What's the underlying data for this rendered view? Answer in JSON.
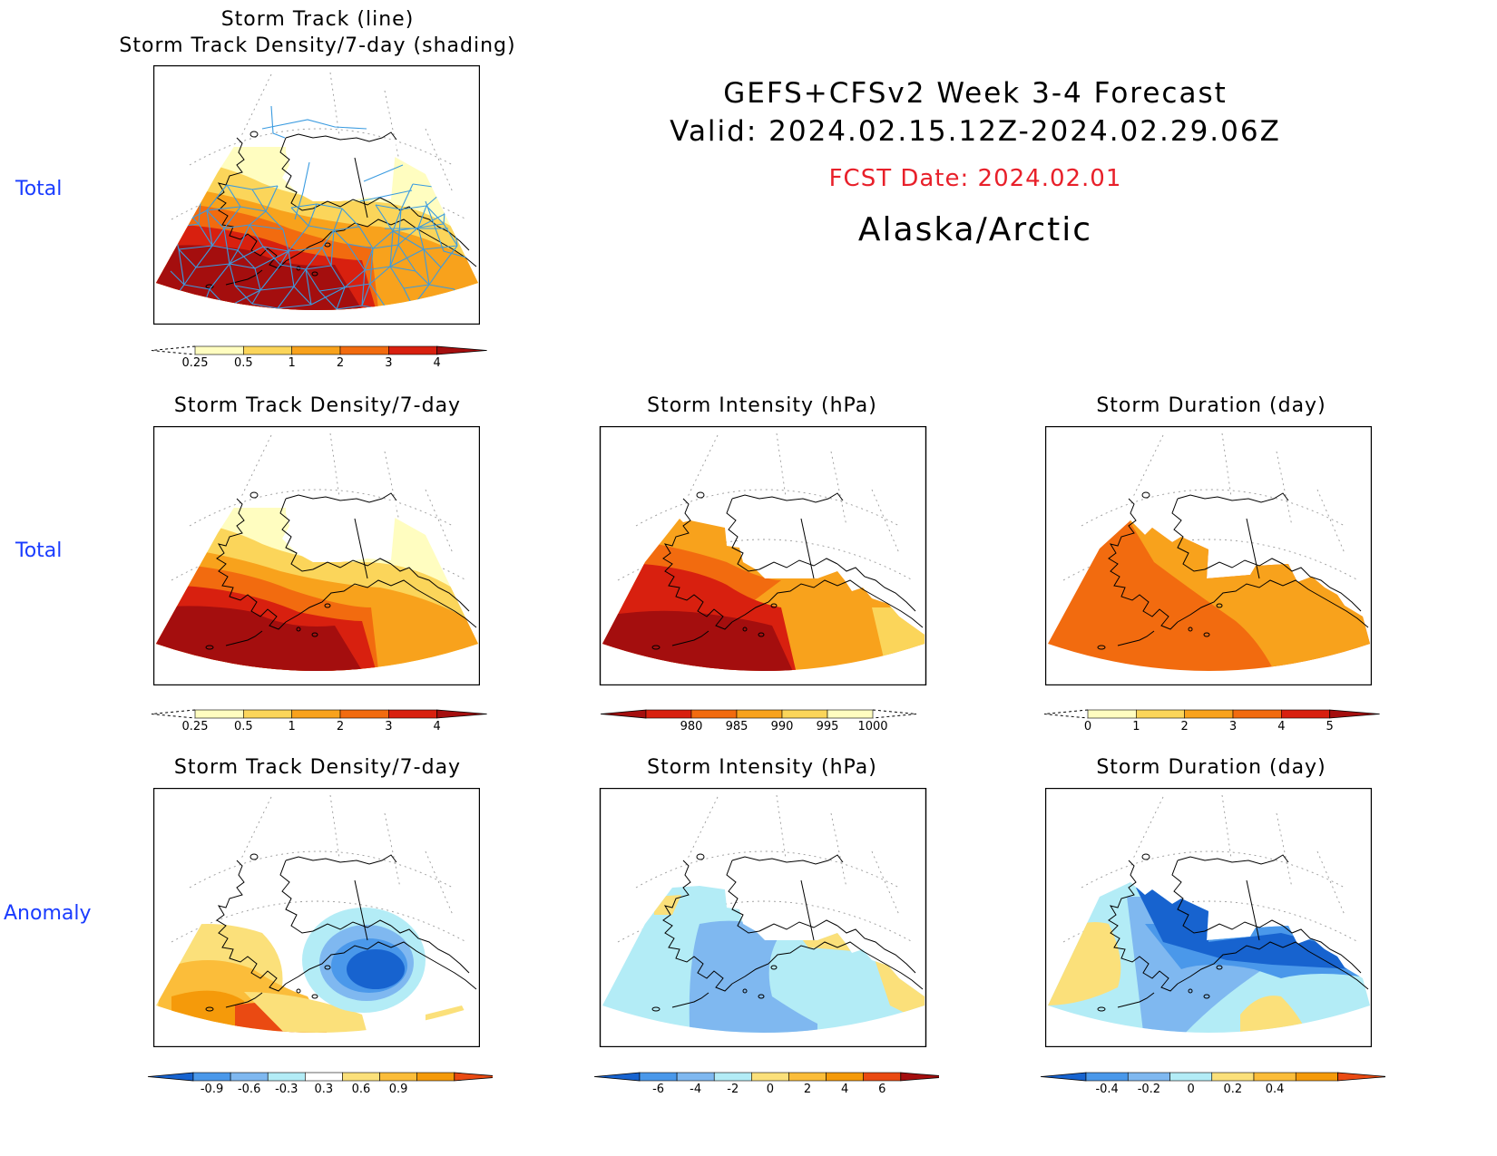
{
  "header": {
    "title_line1": "GEFS+CFSv2 Week 3-4 Forecast",
    "title_line2": "Valid: 2024.02.15.12Z-2024.02.29.06Z",
    "fcst_date": "FCST Date: 2024.02.01",
    "region": "Alaska/Arctic"
  },
  "row_labels": [
    "Total",
    "Total",
    "Anomaly"
  ],
  "colors": {
    "row_label": "#1a3cff",
    "fcst_date": "#e8202a",
    "track_line": "#3a9be0",
    "coast": "#000000"
  },
  "chart_data": [
    {
      "type": "heatmap",
      "title": "Storm Track (line)",
      "subtitle": "Storm Track Density/7-day (shading)",
      "row": 1,
      "col": 1,
      "overlay": "storm-track-lines",
      "colorbar": {
        "ticks": [
          "0.25",
          "0.5",
          "1",
          "2",
          "3",
          "4"
        ],
        "colors": [
          "#fffdc0",
          "#fbd55a",
          "#f8a21c",
          "#f26b0f",
          "#d8200f",
          "#a40e0e"
        ]
      }
    },
    {
      "type": "heatmap",
      "title": "Storm Track Density/7-day",
      "row": 2,
      "col": 1,
      "colorbar": {
        "ticks": [
          "0.25",
          "0.5",
          "1",
          "2",
          "3",
          "4"
        ],
        "colors": [
          "#fffdc0",
          "#fbd55a",
          "#f8a21c",
          "#f26b0f",
          "#d8200f",
          "#a40e0e"
        ]
      }
    },
    {
      "type": "heatmap",
      "title": "Storm Intensity (hPa)",
      "row": 2,
      "col": 2,
      "colorbar": {
        "ticks": [
          "980",
          "985",
          "990",
          "995",
          "1000"
        ],
        "colors": [
          "#a40e0e",
          "#d8200f",
          "#f26b0f",
          "#f8a21c",
          "#fbd55a",
          "#fffdc0"
        ]
      }
    },
    {
      "type": "heatmap",
      "title": "Storm Duration (day)",
      "row": 2,
      "col": 3,
      "colorbar": {
        "ticks": [
          "0",
          "1",
          "2",
          "3",
          "4",
          "5"
        ],
        "colors": [
          "#fffdc0",
          "#fbd55a",
          "#f8a21c",
          "#f26b0f",
          "#d8200f",
          "#a40e0e"
        ]
      }
    },
    {
      "type": "heatmap",
      "title": "Storm Track Density/7-day",
      "row": 3,
      "col": 1,
      "colorbar": {
        "ticks": [
          "-0.9",
          "-0.6",
          "-0.3",
          "0.3",
          "0.6",
          "0.9"
        ],
        "colors": [
          "#1763cf",
          "#4a98ea",
          "#7fb8f0",
          "#b3ecf6",
          "#ffffff",
          "#fbe07a",
          "#fbbd3a",
          "#f59a0a",
          "#ea4a12"
        ]
      }
    },
    {
      "type": "heatmap",
      "title": "Storm Intensity (hPa)",
      "row": 3,
      "col": 2,
      "colorbar": {
        "ticks": [
          "-6",
          "-4",
          "-2",
          "0",
          "2",
          "4",
          "6"
        ],
        "colors": [
          "#1763cf",
          "#4a98ea",
          "#7fb8f0",
          "#b3ecf6",
          "#fbe07a",
          "#fbbd3a",
          "#f59a0a",
          "#ea4a12",
          "#a40e0e"
        ]
      }
    },
    {
      "type": "heatmap",
      "title": "Storm Duration (day)",
      "row": 3,
      "col": 3,
      "colorbar": {
        "ticks": [
          "-0.4",
          "-0.2",
          "0",
          "0.2",
          "0.4"
        ],
        "colors": [
          "#1763cf",
          "#4a98ea",
          "#7fb8f0",
          "#b3ecf6",
          "#fbe07a",
          "#fbbd3a",
          "#f59a0a",
          "#ea4a12"
        ]
      }
    }
  ]
}
